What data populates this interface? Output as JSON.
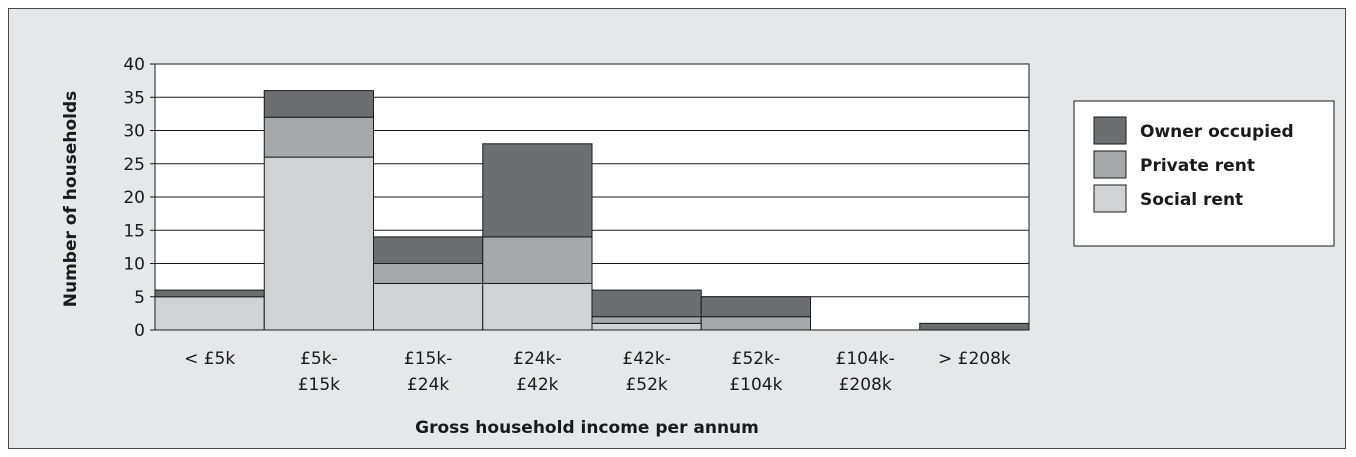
{
  "chart_data": {
    "type": "bar",
    "stacked": true,
    "categories": [
      [
        "< £5k"
      ],
      [
        "£5k-",
        "£15k"
      ],
      [
        "£15k-",
        "£24k"
      ],
      [
        "£24k-",
        "£42k"
      ],
      [
        "£42k-",
        "£52k"
      ],
      [
        "£52k-",
        "£104k"
      ],
      [
        "£104k-",
        "£208k"
      ],
      [
        "> £208k"
      ]
    ],
    "series": [
      {
        "name": "Social rent",
        "color": "#d1d2d4",
        "values": [
          5,
          26,
          7,
          7,
          1,
          0,
          0,
          0
        ]
      },
      {
        "name": "Private rent",
        "color": "#a6a8ab",
        "values": [
          0,
          6,
          3,
          7,
          1,
          2,
          0,
          0
        ]
      },
      {
        "name": "Owner occupied",
        "color": "#6d6e71",
        "values": [
          1,
          4,
          4,
          14,
          4,
          3,
          0,
          1
        ]
      }
    ],
    "legend_order": [
      "Owner occupied",
      "Private rent",
      "Social rent"
    ],
    "xlabel": "Gross household income per annum",
    "ylabel": "Number of households",
    "ylim": [
      0,
      40
    ],
    "yticks": [
      0,
      5,
      10,
      15,
      20,
      25,
      30,
      35,
      40
    ],
    "grid": true,
    "legend_position": "right"
  }
}
